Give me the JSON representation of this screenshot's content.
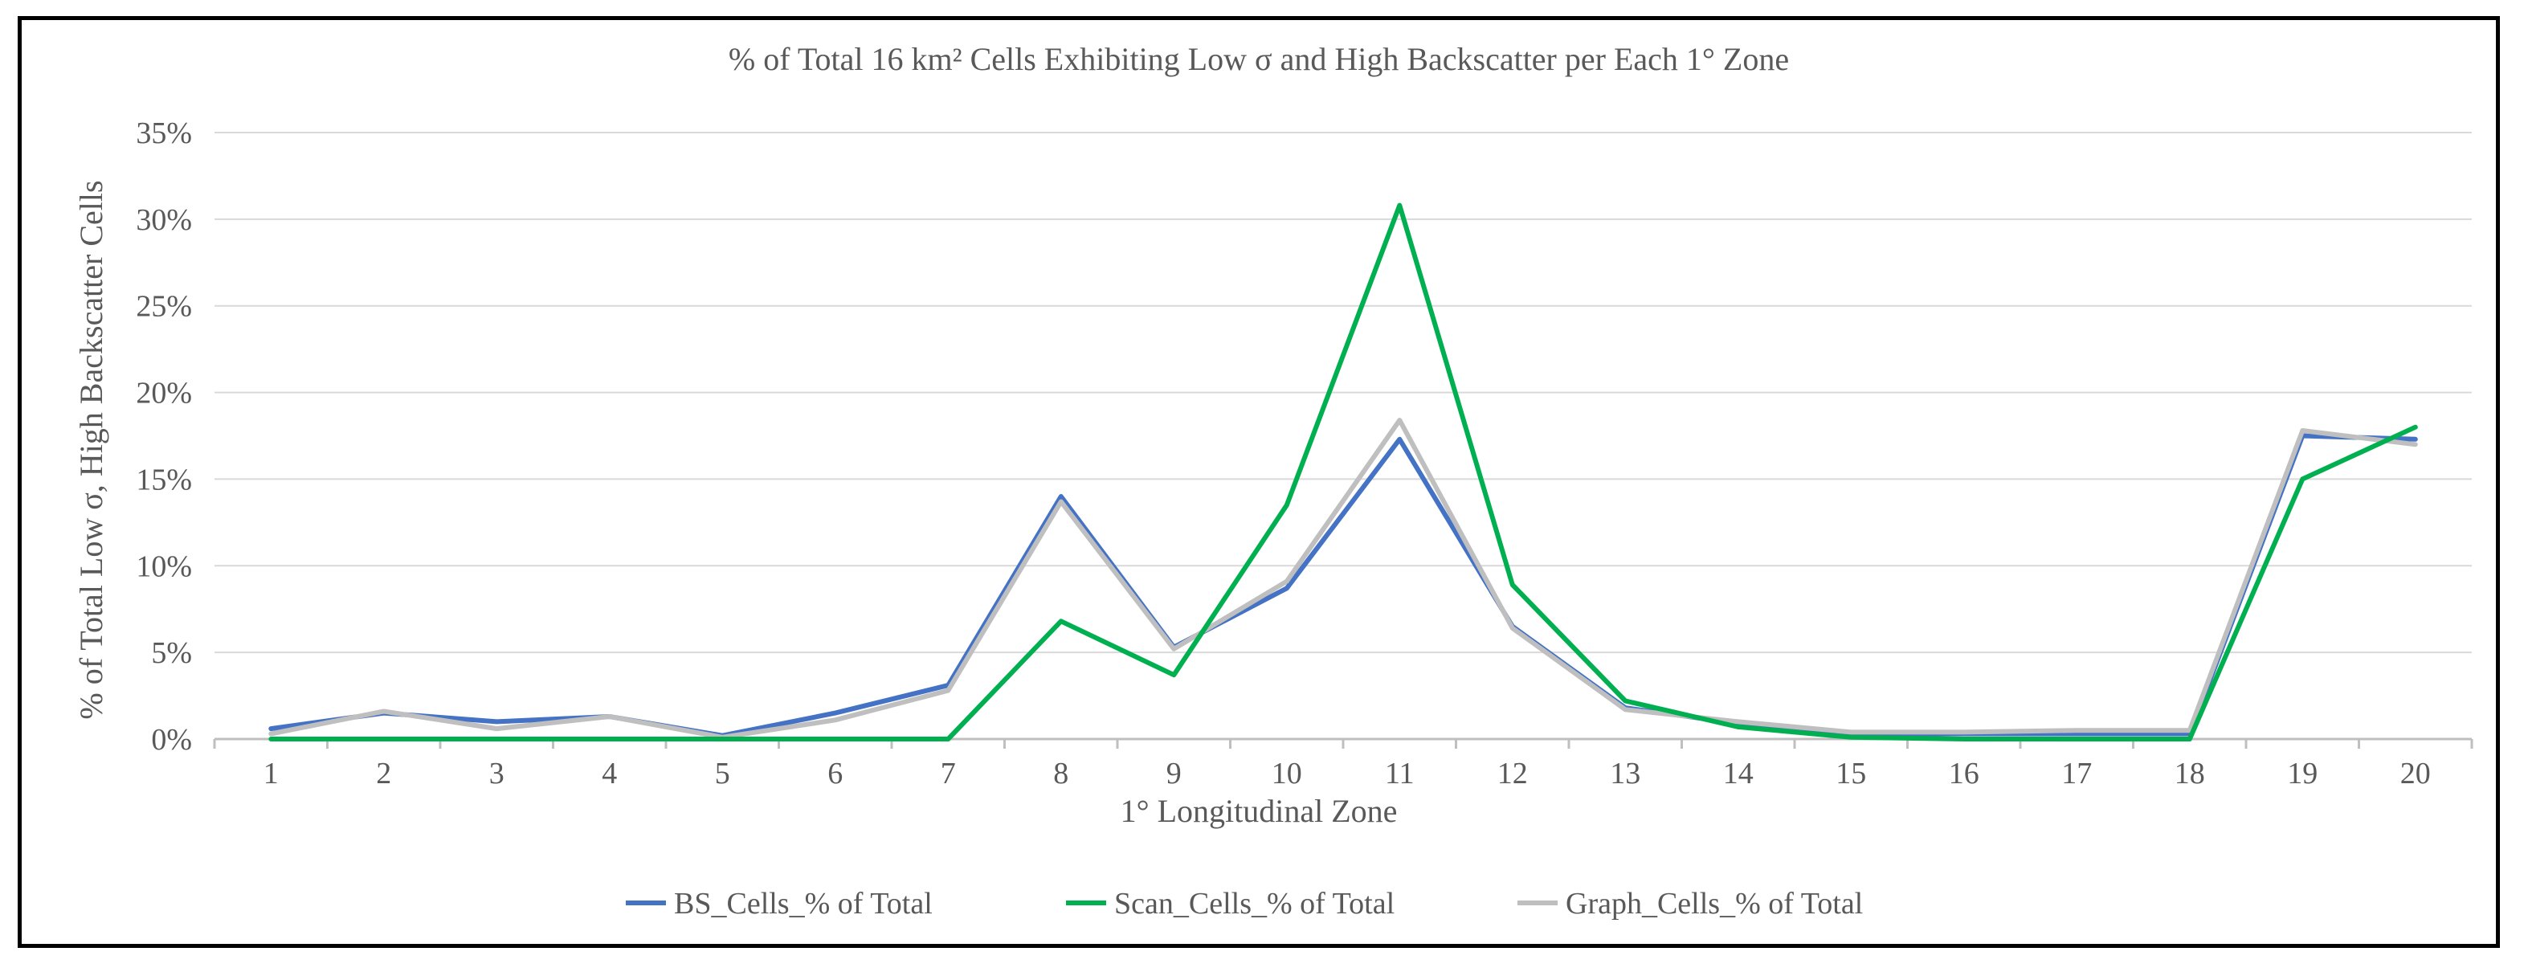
{
  "chart_data": {
    "type": "line",
    "title": "% of Total 16 km² Cells Exhibiting Low σ and High Backscatter per Each 1° Zone",
    "xlabel": "1° Longitudinal Zone",
    "ylabel": "% of Total Low σ, High Backscatter Cells",
    "categories": [
      "1",
      "2",
      "3",
      "4",
      "5",
      "6",
      "7",
      "8",
      "9",
      "10",
      "11",
      "12",
      "13",
      "14",
      "15",
      "16",
      "17",
      "18",
      "19",
      "20"
    ],
    "ylim": [
      0,
      35
    ],
    "yticks": [
      0,
      5,
      10,
      15,
      20,
      25,
      30,
      35
    ],
    "ytick_labels": [
      "0%",
      "5%",
      "10%",
      "15%",
      "20%",
      "25%",
      "30%",
      "35%"
    ],
    "grid": true,
    "legend_position": "bottom",
    "series": [
      {
        "name": "BS_Cells_% of Total",
        "color": "#4472C4",
        "values": [
          0.6,
          1.5,
          1.0,
          1.3,
          0.2,
          1.5,
          3.1,
          14.0,
          5.3,
          8.7,
          17.3,
          6.5,
          1.8,
          0.9,
          0.3,
          0.3,
          0.3,
          0.3,
          17.5,
          17.3
        ]
      },
      {
        "name": "Scan_Cells_% of Total",
        "color": "#00B050",
        "values": [
          0.0,
          0.0,
          0.0,
          0.0,
          0.0,
          0.0,
          0.0,
          6.8,
          3.7,
          13.5,
          30.8,
          8.9,
          2.2,
          0.7,
          0.1,
          0.0,
          0.0,
          0.0,
          15.0,
          18.0
        ]
      },
      {
        "name": "Graph_Cells_% of Total",
        "color": "#BFBFBF",
        "values": [
          0.3,
          1.6,
          0.6,
          1.3,
          0.1,
          1.1,
          2.8,
          13.7,
          5.2,
          9.1,
          18.4,
          6.4,
          1.7,
          1.0,
          0.4,
          0.4,
          0.5,
          0.5,
          17.8,
          17.0
        ]
      }
    ]
  }
}
